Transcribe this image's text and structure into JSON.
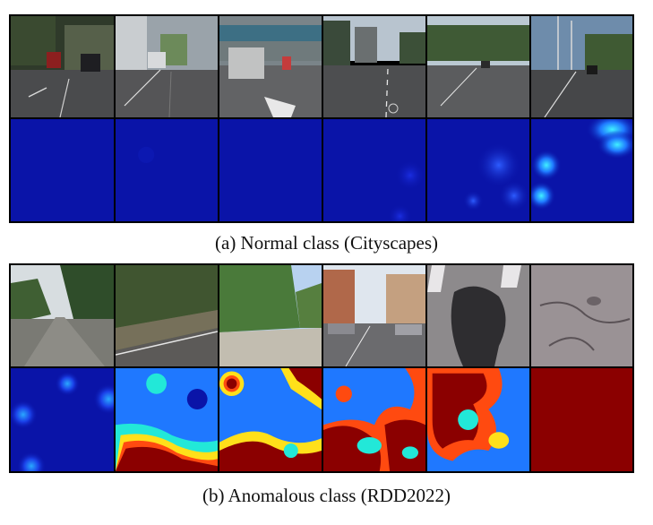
{
  "figure": {
    "panel_a": {
      "caption": "(a) Normal class (Cityscapes)",
      "images": [
        {
          "name": "street-photo-1",
          "kind": "street"
        },
        {
          "name": "street-photo-2",
          "kind": "street"
        },
        {
          "name": "street-photo-3",
          "kind": "street"
        },
        {
          "name": "street-photo-4",
          "kind": "street"
        },
        {
          "name": "street-photo-5",
          "kind": "street"
        },
        {
          "name": "street-photo-6",
          "kind": "street"
        }
      ],
      "heatmaps": [
        {
          "name": "heatmap-1",
          "level": "none"
        },
        {
          "name": "heatmap-2",
          "level": "none"
        },
        {
          "name": "heatmap-3",
          "level": "none"
        },
        {
          "name": "heatmap-4",
          "level": "low"
        },
        {
          "name": "heatmap-5",
          "level": "low"
        },
        {
          "name": "heatmap-6",
          "level": "medium"
        }
      ]
    },
    "panel_b": {
      "caption": "(b) Anomalous class (RDD2022)",
      "images": [
        {
          "name": "road-photo-1",
          "kind": "rural-road"
        },
        {
          "name": "road-photo-2",
          "kind": "rural-road"
        },
        {
          "name": "road-photo-3",
          "kind": "dirt-road"
        },
        {
          "name": "road-photo-4",
          "kind": "city-street"
        },
        {
          "name": "road-photo-5",
          "kind": "pothole-closeup"
        },
        {
          "name": "road-photo-6",
          "kind": "cracked-asphalt"
        }
      ],
      "heatmaps": [
        {
          "name": "heatmap-1",
          "level": "low"
        },
        {
          "name": "heatmap-2",
          "level": "high"
        },
        {
          "name": "heatmap-3",
          "level": "high"
        },
        {
          "name": "heatmap-4",
          "level": "high"
        },
        {
          "name": "heatmap-5",
          "level": "high"
        },
        {
          "name": "heatmap-6",
          "level": "full"
        }
      ]
    },
    "colors": {
      "heat_low": "#0a14a8",
      "heat_mid": "#1fe0ff",
      "heat_high": "#8b0000",
      "border": "#000000"
    }
  }
}
